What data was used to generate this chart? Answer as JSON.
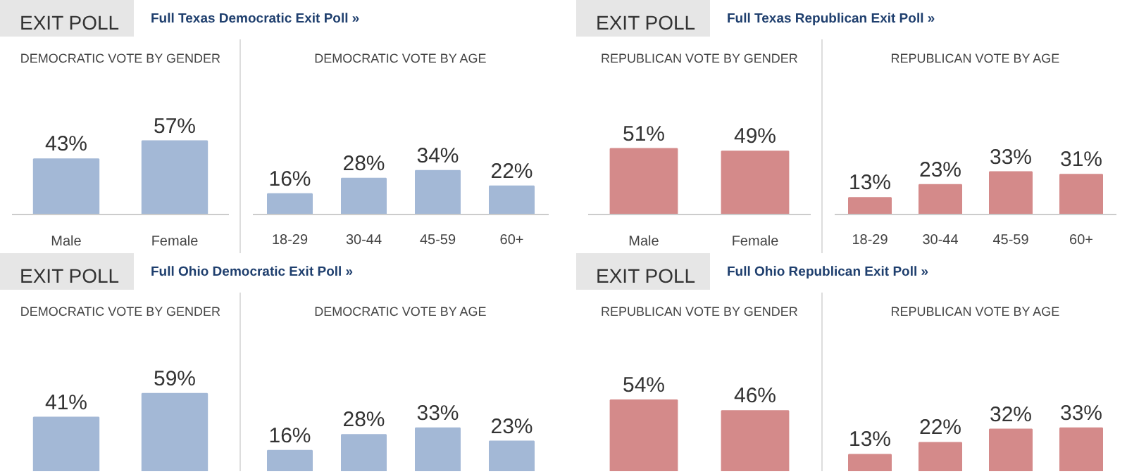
{
  "chart_data": [
    {
      "type": "bar",
      "title": "DEMOCRATIC VOTE BY GENDER",
      "annotations": [
        "EXIT POLL",
        "Full Texas Democratic Exit Poll »"
      ],
      "categories": [
        "Male",
        "Female"
      ],
      "values": [
        43,
        57
      ],
      "value_labels": [
        "43%",
        "57%"
      ],
      "color": "#a3b8d6",
      "tick_labels": "x"
    },
    {
      "type": "bar",
      "title": "DEMOCRATIC VOTE BY AGE",
      "categories": [
        "18-29",
        "30-44",
        "45-59",
        "60+"
      ],
      "values": [
        16,
        28,
        34,
        22
      ],
      "value_labels": [
        "16%",
        "28%",
        "34%",
        "22%"
      ],
      "color": "#a3b8d6",
      "tick_labels": "x"
    },
    {
      "type": "bar",
      "title": "REPUBLICAN VOTE BY GENDER",
      "annotations": [
        "EXIT POLL",
        "Full Texas Republican Exit Poll »"
      ],
      "categories": [
        "Male",
        "Female"
      ],
      "values": [
        51,
        49
      ],
      "value_labels": [
        "51%",
        "49%"
      ],
      "color": "#d48a8a",
      "tick_labels": "x"
    },
    {
      "type": "bar",
      "title": "REPUBLICAN VOTE BY AGE",
      "categories": [
        "18-29",
        "30-44",
        "45-59",
        "60+"
      ],
      "values": [
        13,
        23,
        33,
        31
      ],
      "value_labels": [
        "13%",
        "23%",
        "33%",
        "31%"
      ],
      "color": "#d48a8a",
      "tick_labels": "x"
    },
    {
      "type": "bar",
      "title": "DEMOCRATIC VOTE BY GENDER",
      "annotations": [
        "EXIT POLL",
        "Full Ohio Democratic Exit Poll »"
      ],
      "categories": [
        null,
        null
      ],
      "values": [
        41,
        59
      ],
      "value_labels": [
        "41%",
        "59%"
      ],
      "color": "#a3b8d6",
      "tick_labels": false
    },
    {
      "type": "bar",
      "title": "DEMOCRATIC VOTE BY AGE",
      "categories": [
        null,
        null,
        null,
        null
      ],
      "values": [
        16,
        28,
        33,
        23
      ],
      "value_labels": [
        "16%",
        "28%",
        "33%",
        "23%"
      ],
      "color": "#a3b8d6",
      "tick_labels": false
    },
    {
      "type": "bar",
      "title": "REPUBLICAN VOTE BY GENDER",
      "annotations": [
        "EXIT POLL",
        "Full Ohio Republican Exit Poll »"
      ],
      "categories": [
        null,
        null
      ],
      "values": [
        54,
        46
      ],
      "value_labels": [
        "54%",
        "46%"
      ],
      "color": "#d48a8a",
      "tick_labels": false
    },
    {
      "type": "bar",
      "title": "REPUBLICAN VOTE BY AGE",
      "categories": [
        null,
        null,
        null,
        null
      ],
      "values": [
        13,
        22,
        32,
        33
      ],
      "value_labels": [
        "13%",
        "22%",
        "32%",
        "33%"
      ],
      "color": "#d48a8a",
      "tick_labels": false
    }
  ]
}
